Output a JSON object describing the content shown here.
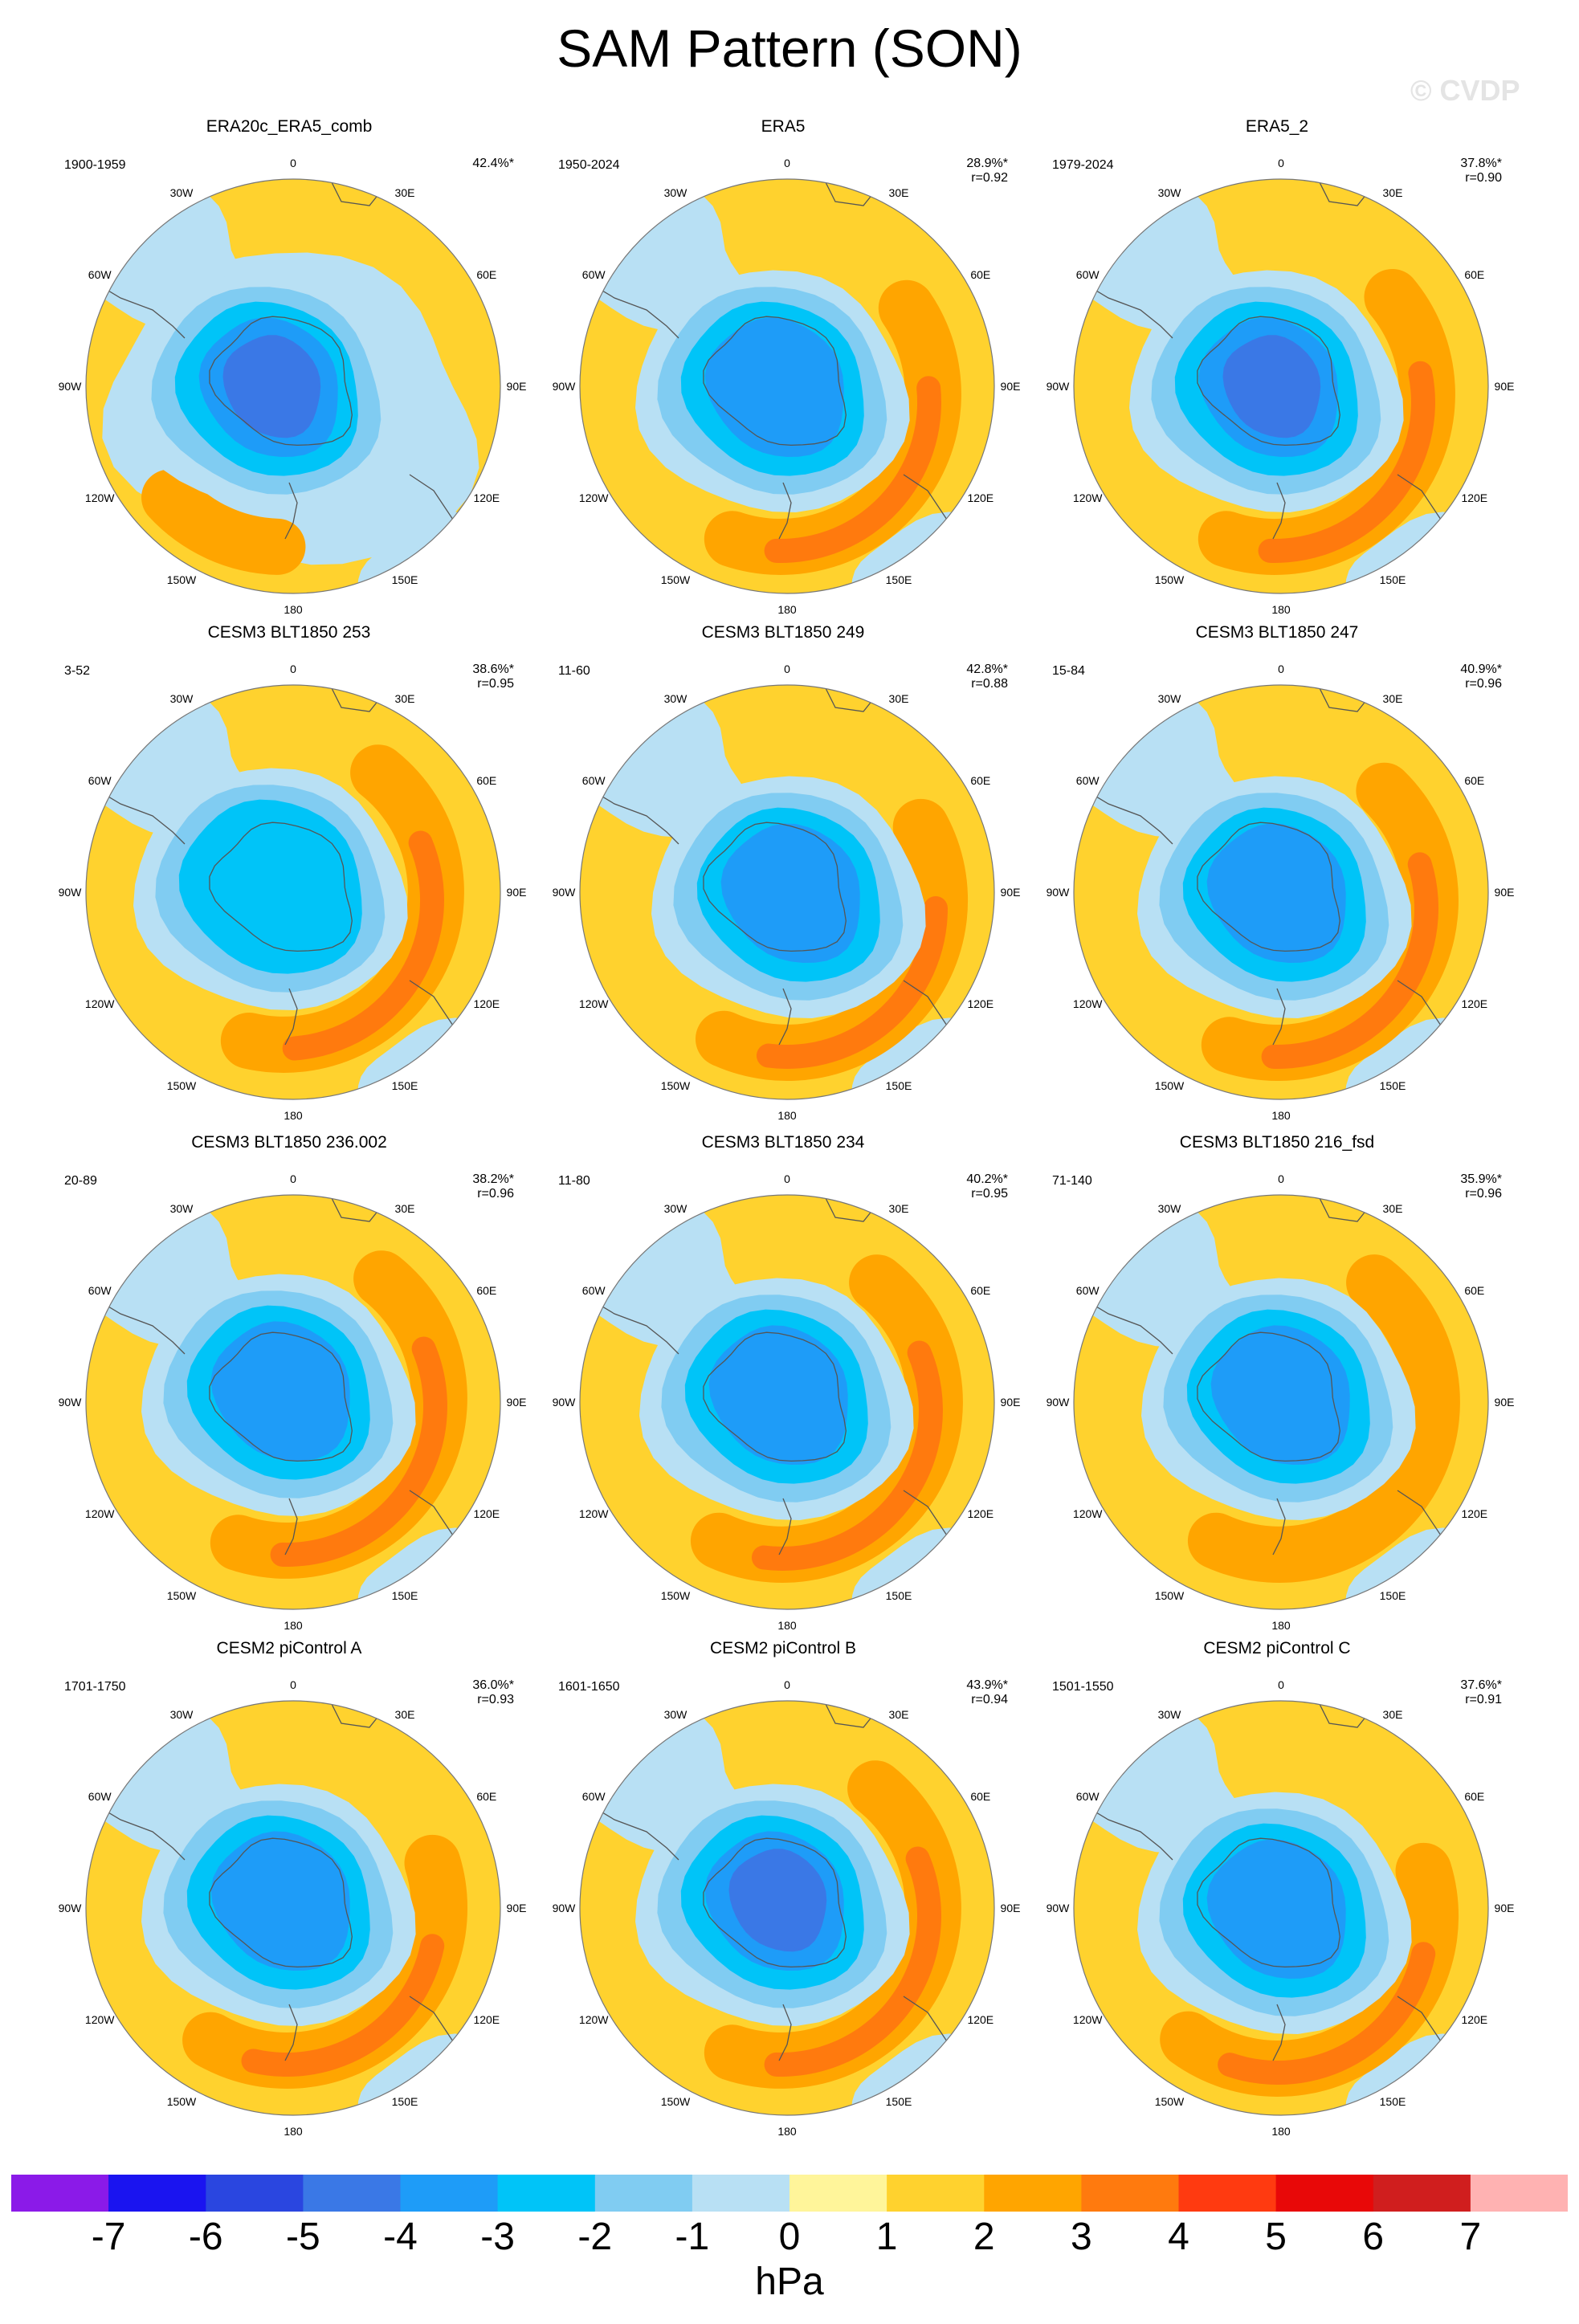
{
  "title": "SAM Pattern (SON)",
  "watermark": "© CVDP",
  "unit": "hPa",
  "colorbar": {
    "labels": [
      "-7",
      "-6",
      "-5",
      "-4",
      "-3",
      "-2",
      "-1",
      "0",
      "1",
      "2",
      "3",
      "4",
      "5",
      "6",
      "7"
    ],
    "colors": [
      "#8b1ae8",
      "#1a14f0",
      "#2a46e0",
      "#3a78e6",
      "#1e9cf8",
      "#00c4f8",
      "#80ccf2",
      "#b8e0f4",
      "#fff59a",
      "#ffd22e",
      "#ffa500",
      "#ff7a0e",
      "#ff3a10",
      "#e80808",
      "#d01e1e",
      "#ffb2b2"
    ]
  },
  "lon_labels": [
    "0",
    "30E",
    "60E",
    "90E",
    "120E",
    "150E",
    "180",
    "150W",
    "120W",
    "90W",
    "60W",
    "30W"
  ],
  "panels": [
    {
      "title": "ERA20c_ERA5_comb",
      "period": "1900-1959",
      "pct": "42.4%*",
      "r": ""
    },
    {
      "title": "ERA5",
      "period": "1950-2024",
      "pct": "28.9%*",
      "r": "r=0.92"
    },
    {
      "title": "ERA5_2",
      "period": "1979-2024",
      "pct": "37.8%*",
      "r": "r=0.90"
    },
    {
      "title": "CESM3 BLT1850 253",
      "period": "3-52",
      "pct": "38.6%*",
      "r": "r=0.95"
    },
    {
      "title": "CESM3 BLT1850 249",
      "period": "11-60",
      "pct": "42.8%*",
      "r": "r=0.88"
    },
    {
      "title": "CESM3 BLT1850 247",
      "period": "15-84",
      "pct": "40.9%*",
      "r": "r=0.96"
    },
    {
      "title": "CESM3 BLT1850 236.002",
      "period": "20-89",
      "pct": "38.2%*",
      "r": "r=0.96"
    },
    {
      "title": "CESM3 BLT1850 234",
      "period": "11-80",
      "pct": "40.2%*",
      "r": "r=0.95"
    },
    {
      "title": "CESM3 BLT1850 216_fsd",
      "period": "71-140",
      "pct": "35.9%*",
      "r": "r=0.96"
    },
    {
      "title": "CESM2 piControl A",
      "period": "1701-1750",
      "pct": "36.0%*",
      "r": "r=0.93"
    },
    {
      "title": "CESM2 piControl B",
      "period": "1601-1650",
      "pct": "43.9%*",
      "r": "r=0.94"
    },
    {
      "title": "CESM2 piControl C",
      "period": "1501-1550",
      "pct": "37.6%*",
      "r": "r=0.91"
    }
  ]
}
